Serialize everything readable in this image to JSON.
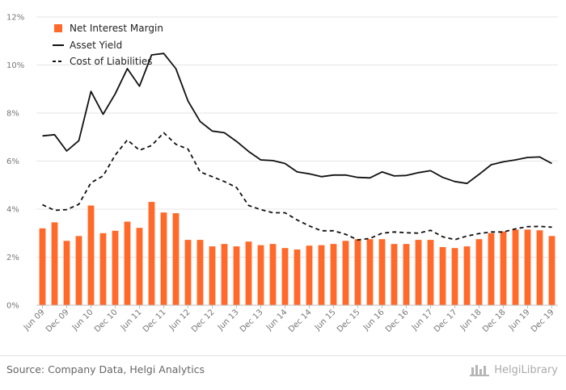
{
  "chart_data": {
    "type": "bar",
    "ylim": [
      0,
      12
    ],
    "yticks": [
      "0%",
      "2%",
      "4%",
      "6%",
      "8%",
      "10%",
      "12%"
    ],
    "categories": [
      "Jun 09",
      "Sep 09",
      "Dec 09",
      "Mar 10",
      "Jun 10",
      "Sep 10",
      "Dec 10",
      "Mar 11",
      "Jun 11",
      "Sep 11",
      "Dec 11",
      "Mar 12",
      "Jun 12",
      "Sep 12",
      "Dec 12",
      "Mar 13",
      "Jun 13",
      "Sep 13",
      "Dec 13",
      "Mar 14",
      "Jun 14",
      "Sep 14",
      "Dec 14",
      "Mar 15",
      "Jun 15",
      "Sep 15",
      "Dec 15",
      "Mar 16",
      "Jun 16",
      "Sep 16",
      "Dec 16",
      "Mar 17",
      "Jun 17",
      "Sep 17",
      "Dec 17",
      "Mar 18",
      "Jun 18",
      "Sep 18",
      "Dec 18",
      "Mar 19",
      "Jun 19",
      "Sep 19",
      "Dec 19"
    ],
    "xtick_labels": [
      "Jun 09",
      "Dec 09",
      "Jun 10",
      "Dec 10",
      "Jun 11",
      "Dec 11",
      "Jun 12",
      "Dec 12",
      "Jun 13",
      "Dec 13",
      "Jun 14",
      "Dec 14",
      "Jun 15",
      "Dec 15",
      "Jun 16",
      "Dec 16",
      "Jun 17",
      "Dec 17",
      "Jun 18",
      "Dec 18",
      "Jun 19",
      "Dec 19"
    ],
    "series": [
      {
        "name": "Net Interest Margin",
        "kind": "bar",
        "color": "#ff6a2a",
        "values": [
          3.2,
          3.45,
          2.68,
          2.88,
          4.15,
          3.0,
          3.1,
          3.48,
          3.22,
          4.3,
          3.86,
          3.83,
          2.72,
          2.72,
          2.45,
          2.55,
          2.45,
          2.65,
          2.5,
          2.55,
          2.38,
          2.32,
          2.48,
          2.5,
          2.55,
          2.68,
          2.75,
          2.75,
          2.75,
          2.55,
          2.55,
          2.72,
          2.72,
          2.42,
          2.38,
          2.45,
          2.75,
          3.0,
          3.07,
          3.15,
          3.15,
          3.12,
          2.88
        ]
      },
      {
        "name": "Asset Yield",
        "kind": "line",
        "style": "solid",
        "color": "#111111",
        "values": [
          7.05,
          7.1,
          6.42,
          6.85,
          8.9,
          7.95,
          8.8,
          9.85,
          9.12,
          10.42,
          10.48,
          9.85,
          8.5,
          7.65,
          7.25,
          7.18,
          6.82,
          6.4,
          6.05,
          6.02,
          5.9,
          5.55,
          5.47,
          5.35,
          5.42,
          5.42,
          5.32,
          5.3,
          5.55,
          5.38,
          5.4,
          5.52,
          5.6,
          5.32,
          5.15,
          5.07,
          5.45,
          5.85,
          5.97,
          6.05,
          6.15,
          6.17,
          5.9
        ]
      },
      {
        "name": "Cost of Liabilities",
        "kind": "line",
        "style": "dashed",
        "color": "#111111",
        "values": [
          4.18,
          3.95,
          3.98,
          4.2,
          5.1,
          5.38,
          6.25,
          6.88,
          6.45,
          6.65,
          7.18,
          6.7,
          6.5,
          5.55,
          5.35,
          5.15,
          4.9,
          4.15,
          3.98,
          3.85,
          3.85,
          3.55,
          3.3,
          3.1,
          3.1,
          2.95,
          2.72,
          2.78,
          3.0,
          3.05,
          3.02,
          3.0,
          3.12,
          2.85,
          2.73,
          2.88,
          2.98,
          3.05,
          3.05,
          3.18,
          3.27,
          3.28,
          3.25
        ]
      }
    ]
  },
  "footer": {
    "source": "Source: Company Data, Helgi Analytics",
    "brand": "HelgiLibrary"
  }
}
